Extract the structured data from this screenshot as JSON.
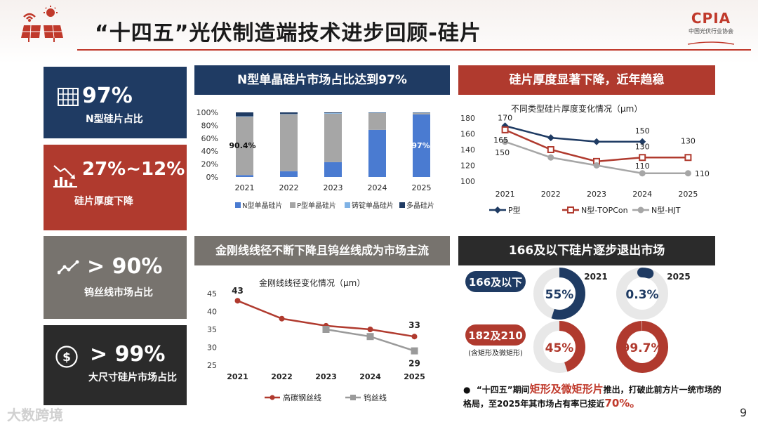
{
  "title": "“十四五”光伏制造端技术进步回顾-硅片",
  "brand": {
    "word": "CPIA",
    "sub": "中国光伏行业协会"
  },
  "page_number": "9",
  "watermark": "大数跨境",
  "colors": {
    "navy": "#1f3b63",
    "red": "#b03a2e",
    "gray": "#77736e",
    "black": "#2b2b2b",
    "blue": "#4a7bd1",
    "lightgray": "#a6a6a6"
  },
  "cards": [
    {
      "value": "97%",
      "label": "N型硅片占比",
      "icon": "grid-icon"
    },
    {
      "value": "27%~12%",
      "label": "硅片厚度下降",
      "icon": "chart-down-icon"
    },
    {
      "value": "> 90%",
      "label": "钨丝线市场占比",
      "icon": "trend-line-icon"
    },
    {
      "value": "> 99%",
      "label": "大尺寸硅片市场占比",
      "icon": "dollar-icon"
    }
  ],
  "panels": {
    "p1": {
      "head": "N型单晶硅片市场占比达到97%"
    },
    "p2": {
      "head": "硅片厚度显著下降，近年趋稳"
    },
    "p3": {
      "head": "金刚线线径不断下降且钨丝线成为市场主流"
    },
    "p4": {
      "head": "166及以下硅片逐步退出市场"
    }
  },
  "note": {
    "pre": "“十四五”期间",
    "hl1": "矩形及微矩形片",
    "mid": "推出，打破此前方片一统市场的格局，至2025年其市场占有率已接近",
    "hl2": "70%。"
  },
  "chart_data": [
    {
      "type": "bar",
      "stacked": true,
      "categories": [
        "2021",
        "2022",
        "2023",
        "2024",
        "2025"
      ],
      "series": [
        {
          "name": "N型单晶硅片",
          "values": [
            3,
            9,
            23,
            73,
            97
          ],
          "color": "#4a7bd1"
        },
        {
          "name": "P型单晶硅片",
          "values": [
            90.4,
            88,
            75,
            26,
            2
          ],
          "color": "#a6a6a6"
        },
        {
          "name": "铸锭单晶硅片",
          "values": [
            0.6,
            0.5,
            1,
            0.5,
            0.5
          ],
          "color": "#7fb2e5"
        },
        {
          "name": "多晶硅片",
          "values": [
            6,
            2.5,
            1,
            0.5,
            0.5
          ],
          "color": "#1f3b63"
        }
      ],
      "data_labels": [
        "90.4%",
        "97%"
      ],
      "ylim": [
        0,
        100
      ],
      "yticks": [
        "0%",
        "20%",
        "40%",
        "60%",
        "80%",
        "100%"
      ],
      "legend": "bottom"
    },
    {
      "type": "line",
      "title": "不同类型硅片厚度变化情况（μm）",
      "x": [
        "2021",
        "2022",
        "2023",
        "2024",
        "2025"
      ],
      "series": [
        {
          "name": "P型",
          "values": [
            170,
            155,
            150,
            150,
            null
          ],
          "color": "#1f3b63",
          "labels": [
            "170",
            "",
            "",
            "150",
            ""
          ]
        },
        {
          "name": "N型-TOPCon",
          "values": [
            165,
            140,
            125,
            130,
            130
          ],
          "color": "#b03a2e",
          "labels": [
            "165",
            "",
            "",
            "130",
            "130"
          ]
        },
        {
          "name": "N型-HJT",
          "values": [
            150,
            130,
            120,
            110,
            110
          ],
          "color": "#a6a6a6",
          "labels": [
            "150",
            "",
            "",
            "110",
            "110"
          ]
        }
      ],
      "ylim": [
        100,
        180
      ],
      "yticks": [
        "100",
        "120",
        "140",
        "160",
        "180"
      ],
      "legend": "bottom"
    },
    {
      "type": "line",
      "title": "金刚线线径变化情况（μm）",
      "x": [
        "2021",
        "2022",
        "2023",
        "2024",
        "2025"
      ],
      "series": [
        {
          "name": "高碳钢丝线",
          "values": [
            43,
            38,
            36,
            35,
            33
          ],
          "color": "#b03a2e",
          "labels": [
            "43",
            "",
            "",
            "",
            "33"
          ]
        },
        {
          "name": "钨丝线",
          "values": [
            null,
            null,
            35,
            33,
            29
          ],
          "color": "#9a9a9a",
          "labels": [
            "",
            "",
            "",
            "",
            "29"
          ]
        }
      ],
      "ylim": [
        25,
        45
      ],
      "yticks": [
        "25",
        "30",
        "35",
        "40",
        "45"
      ],
      "legend": "bottom"
    },
    {
      "type": "pie",
      "rows": [
        {
          "label": "166及以下",
          "color": "#1f3b63",
          "values": [
            {
              "year": "2021",
              "pct": 55,
              "label": "55%"
            },
            {
              "year": "2025",
              "pct": 0.3,
              "label": "0.3%"
            }
          ]
        },
        {
          "label": "182及210",
          "sublabel": "(含矩形及微矩形)",
          "color": "#b03a2e",
          "values": [
            {
              "year": "2021",
              "pct": 45,
              "label": "45%"
            },
            {
              "year": "2025",
              "pct": 99.7,
              "label": "99.7%"
            }
          ]
        }
      ]
    }
  ]
}
